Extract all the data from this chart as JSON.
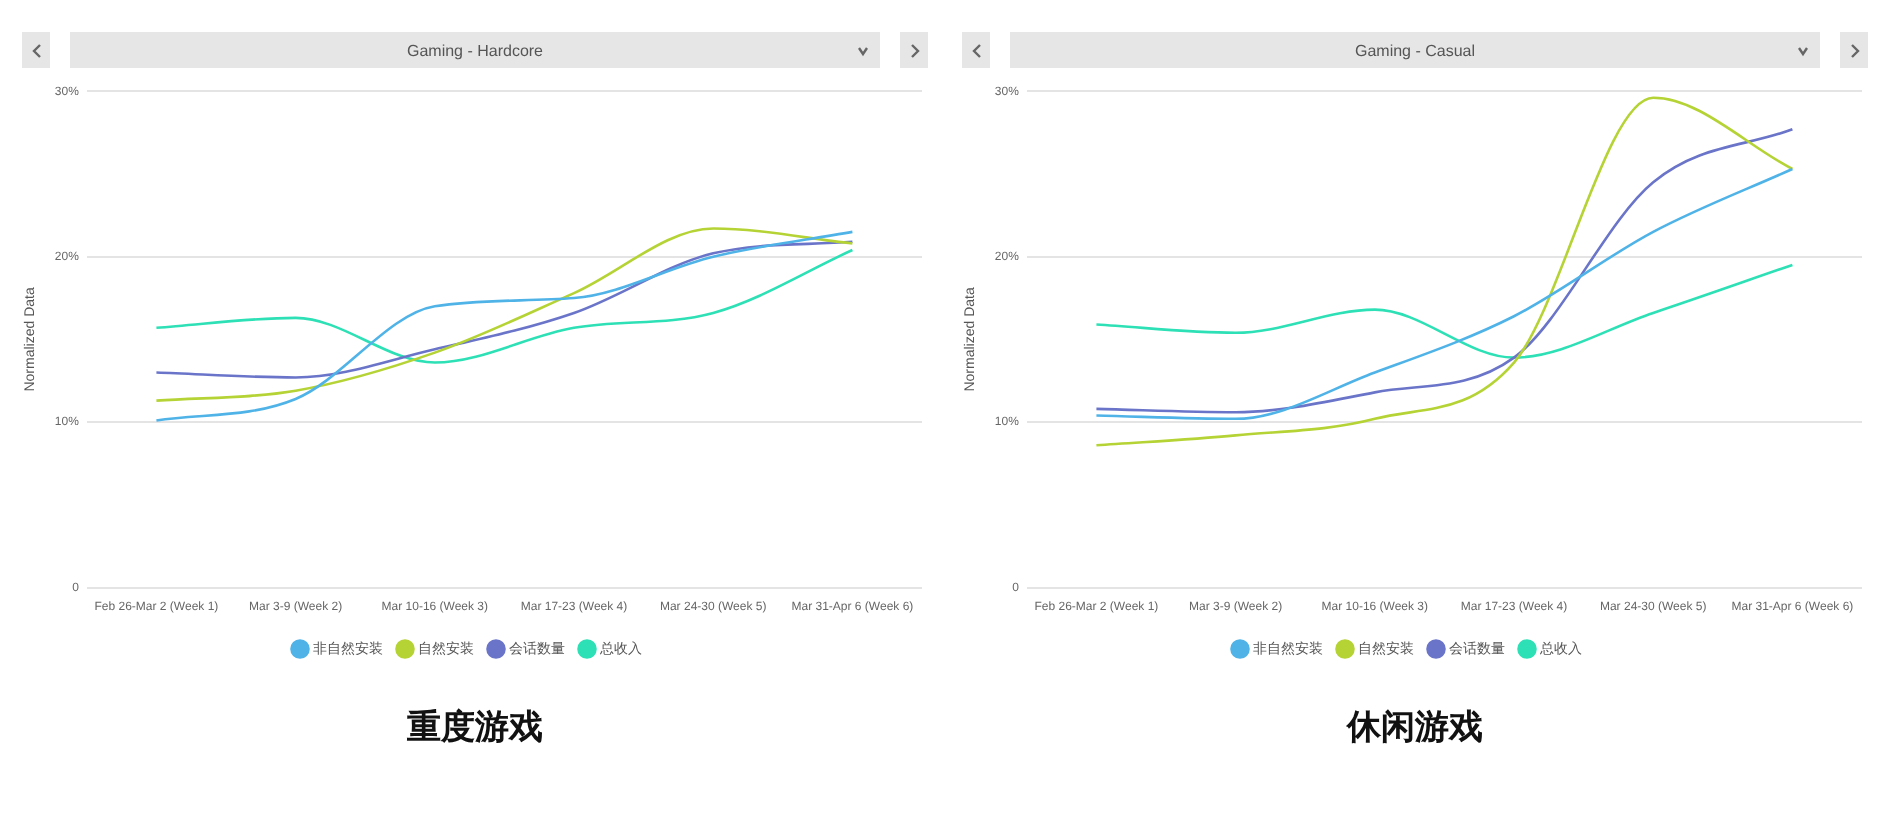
{
  "chart_data": [
    {
      "type": "line",
      "title": "重度游戏",
      "subtitle": "Gaming - Hardcore",
      "ylabel": "Normalized Data",
      "categories": [
        "Feb 26-Mar 2 (Week 1)",
        "Mar 3-9 (Week 2)",
        "Mar 10-16 (Week 3)",
        "Mar 17-23 (Week 4)",
        "Mar 24-30 (Week 5)",
        "Mar 31-Apr 6 (Week 6)"
      ],
      "ylim": [
        0,
        30
      ],
      "yticks": [
        {
          "value": 0,
          "label": "0"
        },
        {
          "value": 10,
          "label": "10%"
        },
        {
          "value": 20,
          "label": "20%"
        },
        {
          "value": 30,
          "label": "30%"
        }
      ],
      "grid": "y",
      "legend": "bottom",
      "marker": "none",
      "line_style": "solid",
      "series": [
        {
          "name": "非自然安装",
          "color": "#4fb3e8",
          "values": [
            10.1,
            11.4,
            17.0,
            17.5,
            20.0,
            21.5
          ]
        },
        {
          "name": "自然安装",
          "color": "#b5d334",
          "values": [
            11.3,
            11.9,
            14.2,
            17.8,
            21.7,
            20.8
          ]
        },
        {
          "name": "会话数量",
          "color": "#6a75c9",
          "values": [
            13.0,
            12.7,
            14.4,
            16.6,
            20.2,
            20.9
          ]
        },
        {
          "name": "总收入",
          "color": "#2ee0b5",
          "values": [
            15.7,
            16.3,
            13.6,
            15.7,
            16.6,
            20.4
          ]
        }
      ]
    },
    {
      "type": "line",
      "title": "休闲游戏",
      "subtitle": "Gaming - Casual",
      "ylabel": "Normalized Data",
      "categories": [
        "Feb 26-Mar 2 (Week 1)",
        "Mar 3-9 (Week 2)",
        "Mar 10-16 (Week 3)",
        "Mar 17-23 (Week 4)",
        "Mar 24-30 (Week 5)",
        "Mar 31-Apr 6 (Week 6)"
      ],
      "ylim": [
        0,
        30
      ],
      "yticks": [
        {
          "value": 0,
          "label": "0"
        },
        {
          "value": 10,
          "label": "10%"
        },
        {
          "value": 20,
          "label": "20%"
        },
        {
          "value": 30,
          "label": "30%"
        }
      ],
      "grid": "y",
      "legend": "bottom",
      "marker": "none",
      "line_style": "solid",
      "series": [
        {
          "name": "非自然安装",
          "color": "#4fb3e8",
          "values": [
            10.4,
            10.2,
            13.0,
            16.4,
            21.5,
            25.3
          ]
        },
        {
          "name": "自然安装",
          "color": "#b5d334",
          "values": [
            8.6,
            9.2,
            10.2,
            13.6,
            29.6,
            25.3
          ]
        },
        {
          "name": "会话数量",
          "color": "#6a75c9",
          "values": [
            10.8,
            10.6,
            11.8,
            13.9,
            24.5,
            27.7
          ]
        },
        {
          "name": "总收入",
          "color": "#2ee0b5",
          "values": [
            15.9,
            15.4,
            16.8,
            13.9,
            16.6,
            19.5
          ]
        }
      ]
    }
  ]
}
